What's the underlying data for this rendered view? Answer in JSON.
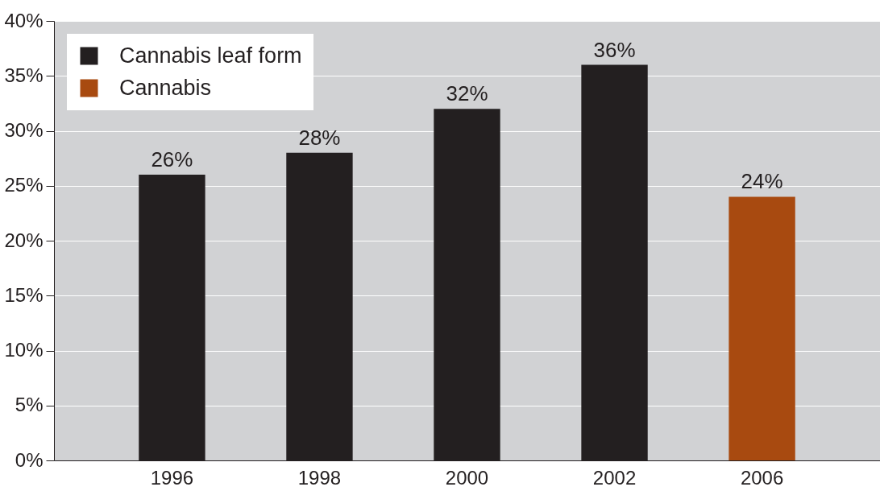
{
  "chart_data": {
    "type": "bar",
    "categories": [
      "1996",
      "1998",
      "2000",
      "2002",
      "2006"
    ],
    "series": [
      {
        "name": "Cannabis leaf form",
        "color": "#231f20",
        "values": [
          26,
          28,
          32,
          36,
          null
        ],
        "value_labels": [
          "26%",
          "28%",
          "32%",
          "36%",
          null
        ]
      },
      {
        "name": "Cannabis",
        "color": "#a84a10",
        "values": [
          null,
          null,
          null,
          null,
          24
        ],
        "value_labels": [
          null,
          null,
          null,
          null,
          "24%"
        ]
      }
    ],
    "ylim": [
      0,
      40
    ],
    "yticks": [
      {
        "value": 0,
        "label": "0%"
      },
      {
        "value": 5,
        "label": "5%"
      },
      {
        "value": 10,
        "label": "10%"
      },
      {
        "value": 15,
        "label": "15%"
      },
      {
        "value": 20,
        "label": "20%"
      },
      {
        "value": 25,
        "label": "25%"
      },
      {
        "value": 30,
        "label": "30%"
      },
      {
        "value": 35,
        "label": "35%"
      },
      {
        "value": 40,
        "label": "40%"
      }
    ],
    "grid": "y",
    "legend": "top left"
  }
}
